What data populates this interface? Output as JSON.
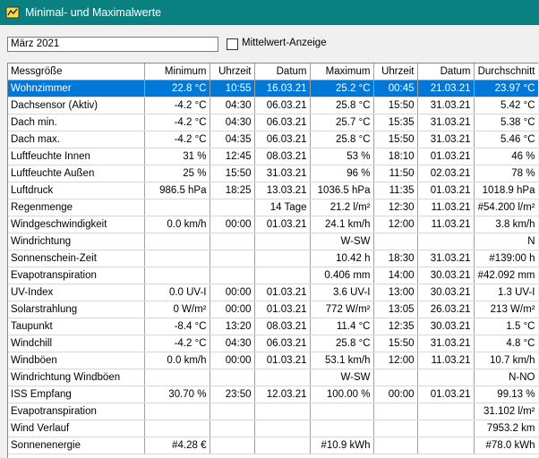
{
  "window": {
    "title": "Minimal- und Maximalwerte"
  },
  "controls": {
    "month": "März 2021",
    "checkbox_label": "Mittelwert-Anzeige"
  },
  "table": {
    "headers": [
      "Messgröße",
      "Minimum",
      "Uhrzeit",
      "Datum",
      "Maximum",
      "Uhrzeit",
      "Datum",
      "Durchschnitt"
    ],
    "rows": [
      [
        "Wohnzimmer",
        "22.8 °C",
        "10:55",
        "16.03.21",
        "25.2 °C",
        "00:45",
        "21.03.21",
        "23.97 °C"
      ],
      [
        "Dachsensor (Aktiv)",
        "-4.2 °C",
        "04:30",
        "06.03.21",
        "25.8 °C",
        "15:50",
        "31.03.21",
        "5.42 °C"
      ],
      [
        "Dach min.",
        "-4.2 °C",
        "04:30",
        "06.03.21",
        "25.7 °C",
        "15:35",
        "31.03.21",
        "5.38 °C"
      ],
      [
        "Dach max.",
        "-4.2 °C",
        "04:35",
        "06.03.21",
        "25.8 °C",
        "15:50",
        "31.03.21",
        "5.46 °C"
      ],
      [
        "Luftfeuchte Innen",
        "31 %",
        "12:45",
        "08.03.21",
        "53 %",
        "18:10",
        "01.03.21",
        "46 %"
      ],
      [
        "Luftfeuchte Außen",
        "25 %",
        "15:50",
        "31.03.21",
        "96 %",
        "11:50",
        "02.03.21",
        "78 %"
      ],
      [
        "Luftdruck",
        "986.5 hPa",
        "18:25",
        "13.03.21",
        "1036.5 hPa",
        "11:35",
        "01.03.21",
        "1018.9 hPa"
      ],
      [
        "Regenmenge",
        null,
        null,
        "14 Tage",
        "21.2 l/m²",
        "12:30",
        "11.03.21",
        "#54.200 l/m²"
      ],
      [
        "Windgeschwindigkeit",
        "0.0 km/h",
        "00:00",
        "01.03.21",
        "24.1 km/h",
        "12:00",
        "11.03.21",
        "3.8 km/h"
      ],
      [
        "Windrichtung",
        null,
        null,
        null,
        "W-SW",
        null,
        null,
        "N"
      ],
      [
        "Sonnenschein-Zeit",
        null,
        null,
        null,
        "10.42 h",
        "18:30",
        "31.03.21",
        "#139:00 h"
      ],
      [
        "Evapotranspiration",
        null,
        null,
        null,
        "0.406 mm",
        "14:00",
        "30.03.21",
        "#42.092 mm"
      ],
      [
        "UV-Index",
        "0.0 UV-I",
        "00:00",
        "01.03.21",
        "3.6 UV-I",
        "13:00",
        "30.03.21",
        "1.3 UV-I"
      ],
      [
        "Solarstrahlung",
        "0 W/m²",
        "00:00",
        "01.03.21",
        "772 W/m²",
        "13:05",
        "26.03.21",
        "213 W/m²"
      ],
      [
        "Taupunkt",
        "-8.4 °C",
        "13:20",
        "08.03.21",
        "11.4 °C",
        "12:35",
        "30.03.21",
        "1.5 °C"
      ],
      [
        "Windchill",
        "-4.2 °C",
        "04:30",
        "06.03.21",
        "25.8 °C",
        "15:50",
        "31.03.21",
        "4.8 °C"
      ],
      [
        "Windböen",
        "0.0 km/h",
        "00:00",
        "01.03.21",
        "53.1 km/h",
        "12:00",
        "11.03.21",
        "10.7 km/h"
      ],
      [
        "Windrichtung Windböen",
        null,
        null,
        null,
        "W-SW",
        null,
        null,
        "N-NO"
      ],
      [
        "ISS Empfang",
        "30.70 %",
        "23:50",
        "12.03.21",
        "100.00 %",
        "00:00",
        "01.03.21",
        "99.13 %"
      ],
      [
        "Evapotranspiration",
        null,
        null,
        null,
        null,
        null,
        null,
        "31.102 l/m²"
      ],
      [
        "Wind Verlauf",
        null,
        null,
        null,
        null,
        null,
        null,
        "7953.2 km"
      ],
      [
        "Sonnenenergie",
        "#4.28 €",
        null,
        null,
        "#10.9 kWh",
        null,
        null,
        "#78.0 kWh"
      ]
    ],
    "selected_row": 0
  }
}
